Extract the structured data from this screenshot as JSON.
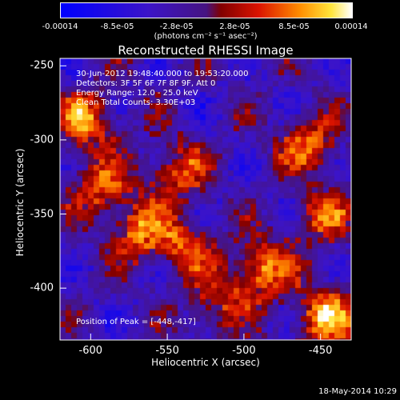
{
  "chart_data": {
    "type": "heatmap",
    "title": "Reconstructed RHESSI Image",
    "xlabel": "Heliocentric X (arcsec)",
    "ylabel": "Heliocentric Y (arcsec)",
    "xlim": [
      -620,
      -430
    ],
    "ylim": [
      -435,
      -245
    ],
    "x_ticks": [
      "-600",
      "-550",
      "-500",
      "-450"
    ],
    "x_tick_values": [
      -600,
      -550,
      -500,
      -450
    ],
    "y_ticks": [
      "-250",
      "-300",
      "-350",
      "-400"
    ],
    "y_tick_values": [
      -250,
      -300,
      -350,
      -400
    ],
    "colorbar": {
      "ticks": [
        "-0.00014",
        "-8.5e-05",
        "-2.8e-05",
        "2.8e-05",
        "8.5e-05",
        "0.00014"
      ],
      "tick_values": [
        -0.00014,
        -8.5e-05,
        -2.8e-05,
        2.8e-05,
        8.5e-05,
        0.00014
      ],
      "label": "(photons cm⁻² s⁻¹ asec⁻²)",
      "range": [
        -0.00014,
        0.00014
      ]
    },
    "annotations": {
      "time": "30-Jun-2012 19:48:40.000 to 19:53:20.000",
      "detectors": "Detectors: 3F 5F 6F 7F 8F 9F, Att 0",
      "energy": "Energy Range: 12.0 - 25.0 keV",
      "clean": "Clean     Total Counts: 3.30E+03",
      "peak": "Position of Peak = [-448,-417]"
    },
    "bright_regions_data_units": [
      {
        "x": -605,
        "y": -285,
        "v": 0.00012
      },
      {
        "x": -595,
        "y": -330,
        "v": 0.0001
      },
      {
        "x": -570,
        "y": -360,
        "v": 0.00011
      },
      {
        "x": -545,
        "y": -320,
        "v": 0.0001
      },
      {
        "x": -540,
        "y": -370,
        "v": 9e-05
      },
      {
        "x": -490,
        "y": -385,
        "v": 0.00013
      },
      {
        "x": -460,
        "y": -300,
        "v": 0.00011
      },
      {
        "x": -448,
        "y": -417,
        "v": 0.00014
      },
      {
        "x": -450,
        "y": -350,
        "v": 9e-05
      },
      {
        "x": -520,
        "y": -410,
        "v": 8e-05
      }
    ]
  },
  "footer": {
    "date": "18-May-2014 10:29"
  }
}
